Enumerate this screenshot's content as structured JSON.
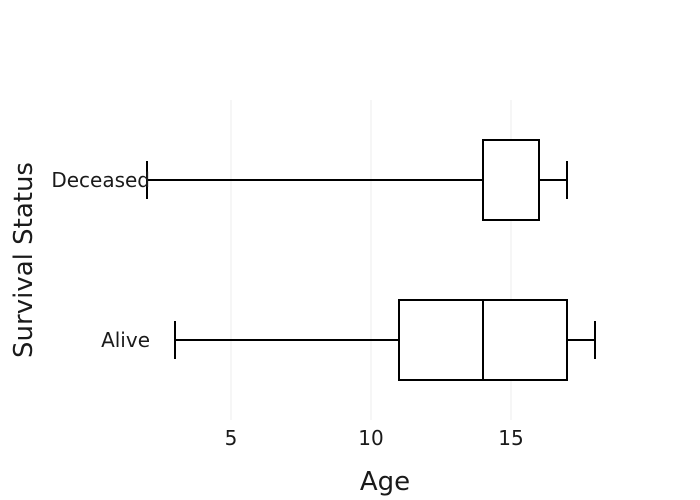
{
  "chart_data": {
    "type": "box",
    "orientation": "horizontal",
    "title": "",
    "xlabel": "Age",
    "ylabel": "Survival Status",
    "xlim": [
      1,
      20
    ],
    "x_ticks": [
      5,
      10,
      15
    ],
    "grid": true,
    "categories": [
      "Deceased",
      "Alive"
    ],
    "boxes": [
      {
        "category": "Deceased",
        "min": 2,
        "q1": 14,
        "median": 14,
        "q3": 16,
        "max": 17
      },
      {
        "category": "Alive",
        "min": 3,
        "q1": 11,
        "median": 14,
        "q3": 17,
        "max": 18
      }
    ],
    "colors": {
      "stroke": "#000000",
      "fill": "#ffffff",
      "grid": "#eeeeee",
      "text": "#1a1a1a"
    }
  }
}
